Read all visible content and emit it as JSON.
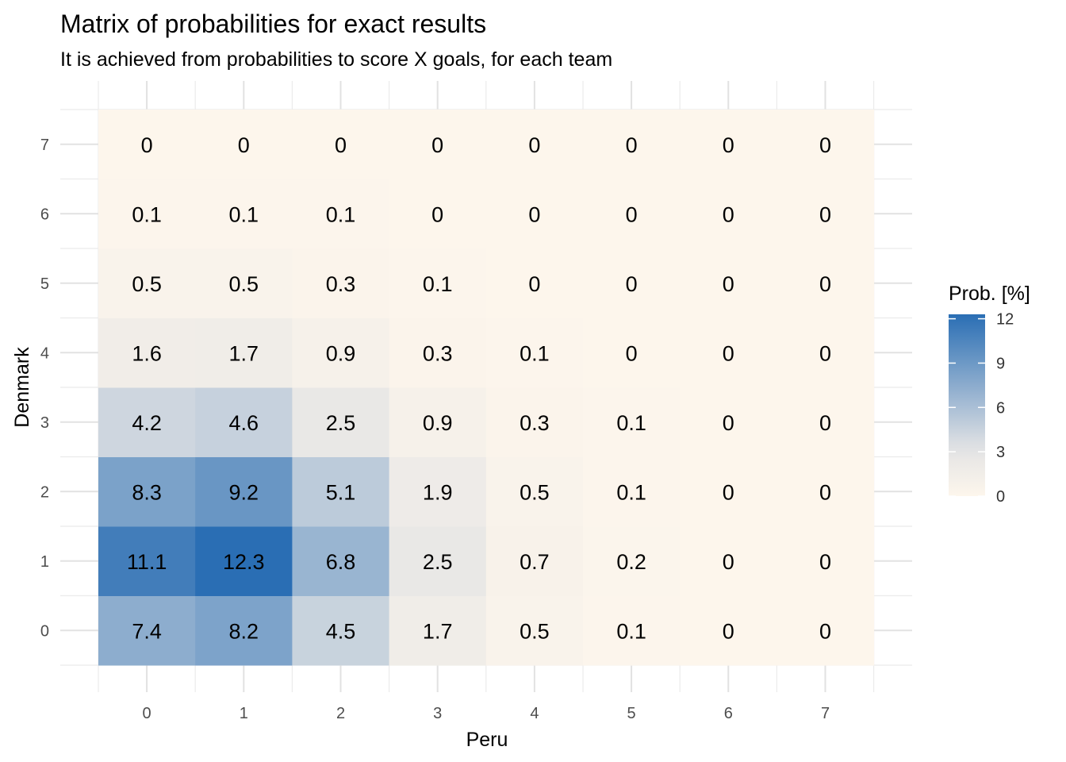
{
  "chart_data": {
    "type": "heatmap",
    "title": "Matrix of probabilities for exact results",
    "subtitle": "It is achieved from probabilities to score X goals, for each team",
    "xlabel": "Peru",
    "ylabel": "Denmark",
    "x_categories": [
      "0",
      "1",
      "2",
      "3",
      "4",
      "5",
      "6",
      "7"
    ],
    "y_categories": [
      "0",
      "1",
      "2",
      "3",
      "4",
      "5",
      "6",
      "7"
    ],
    "values": [
      [
        7.4,
        8.2,
        4.5,
        1.7,
        0.5,
        0.1,
        0,
        0
      ],
      [
        11.1,
        12.3,
        6.8,
        2.5,
        0.7,
        0.2,
        0,
        0
      ],
      [
        8.3,
        9.2,
        5.1,
        1.9,
        0.5,
        0.1,
        0,
        0
      ],
      [
        4.2,
        4.6,
        2.5,
        0.9,
        0.3,
        0.1,
        0,
        0
      ],
      [
        1.6,
        1.7,
        0.9,
        0.3,
        0.1,
        0,
        0,
        0
      ],
      [
        0.5,
        0.5,
        0.3,
        0.1,
        0,
        0,
        0,
        0
      ],
      [
        0.1,
        0.1,
        0.1,
        0,
        0,
        0,
        0,
        0
      ],
      [
        0,
        0,
        0,
        0,
        0,
        0,
        0,
        0
      ]
    ],
    "legend": {
      "title": "Prob. [%]",
      "ticks": [
        "0",
        "3",
        "6",
        "9",
        "12"
      ],
      "min": 0,
      "max": 12.3,
      "low_color": "#fdf6ec",
      "mid_color": "#e5e5e5",
      "high_color": "#2a6eb4"
    }
  }
}
